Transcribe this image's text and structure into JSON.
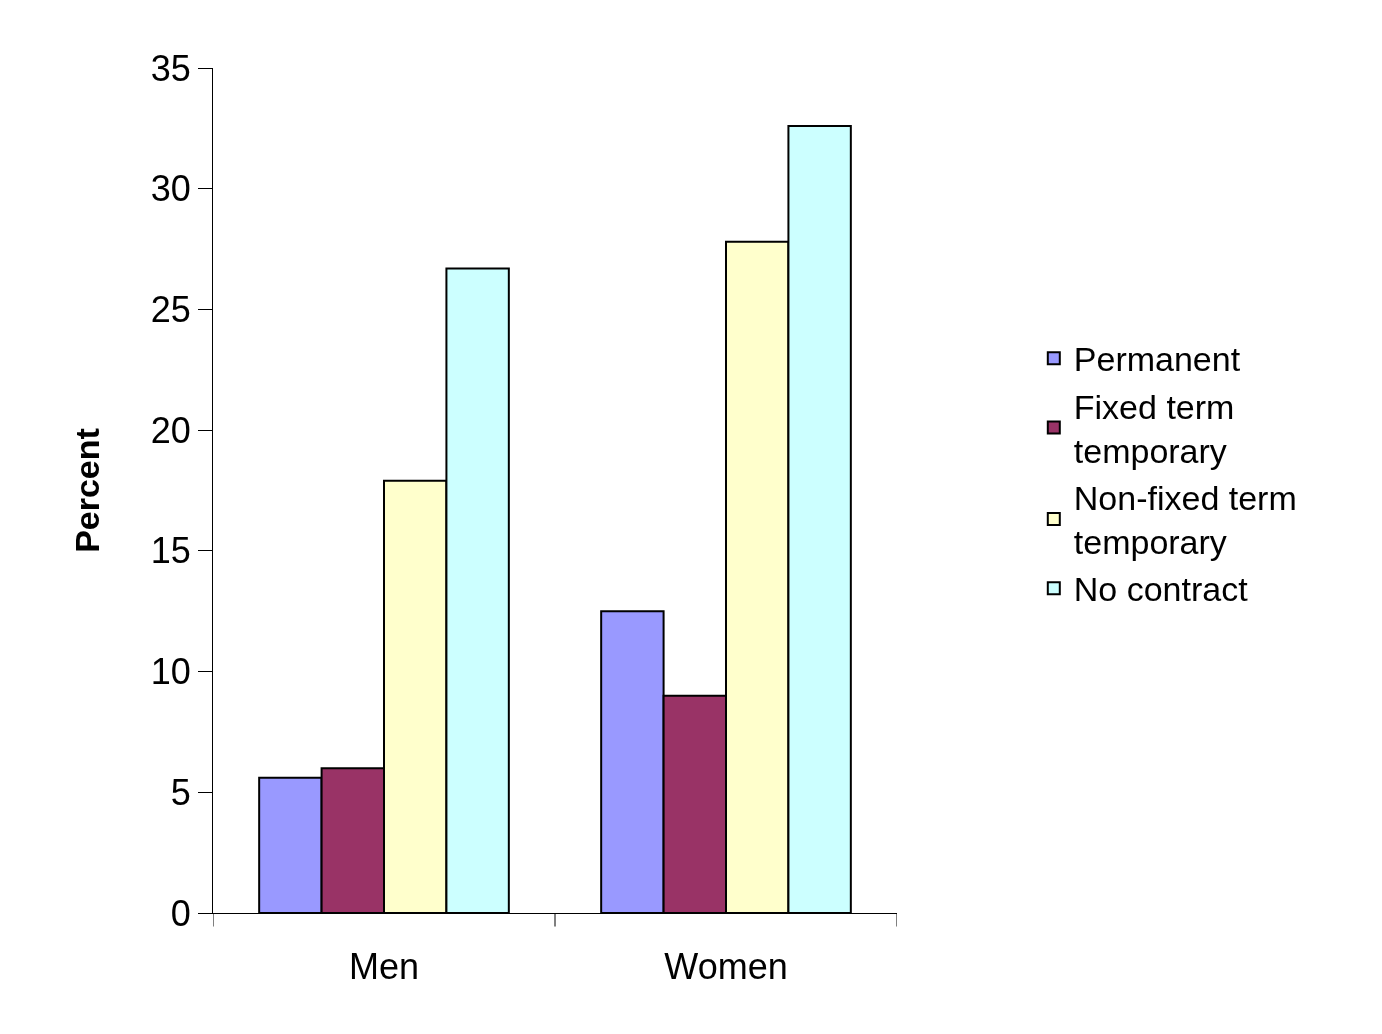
{
  "chart_data": {
    "type": "bar",
    "ylabel": "Percent",
    "categories": [
      "Men",
      "Women"
    ],
    "series": [
      {
        "name": "Permanent",
        "color": "#9999ff",
        "values": [
          5.6,
          12.5
        ]
      },
      {
        "name": "Fixed term temporary",
        "color": "#993366",
        "values": [
          6.0,
          9.0
        ]
      },
      {
        "name": "Non-fixed term temporary",
        "color": "#ffffcc",
        "values": [
          17.9,
          27.8
        ]
      },
      {
        "name": "No contract",
        "color": "#ccffff",
        "values": [
          26.7,
          32.6
        ]
      }
    ],
    "ylim": [
      0,
      35
    ],
    "yticks": [
      0,
      5,
      10,
      15,
      20,
      25,
      30,
      35
    ],
    "legend": "right"
  }
}
